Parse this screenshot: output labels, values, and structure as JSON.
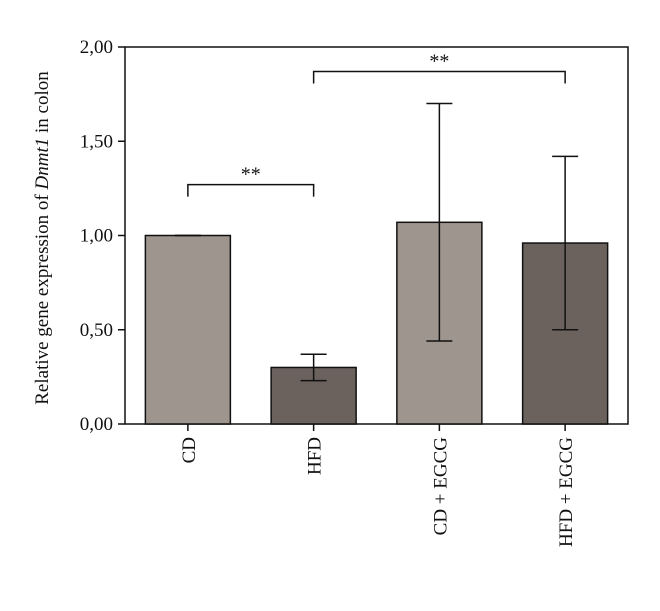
{
  "chart_data": {
    "type": "bar",
    "title": "",
    "xlabel": "",
    "ylabel": {
      "prefix": "Relative gene expression of ",
      "gene": "Dnmt1",
      "suffix": " in colon"
    },
    "categories": [
      "CD",
      "HFD",
      "CD + EGCG",
      "HFD + EGCG"
    ],
    "values": [
      1.0,
      0.3,
      1.07,
      0.96
    ],
    "error_upper": [
      1.0,
      0.37,
      1.7,
      1.42
    ],
    "error_lower": [
      1.0,
      0.23,
      0.44,
      0.5
    ],
    "bar_colors": [
      "#9e958f",
      "#6b625d",
      "#9e958f",
      "#6b625d"
    ],
    "ylim": [
      0,
      2.0
    ],
    "yticks": [
      0,
      0.5,
      1.0,
      1.5,
      2.0
    ],
    "ytick_labels": [
      "0,00",
      "0,50",
      "1,00",
      "1,50",
      "2,00"
    ],
    "grid": false,
    "significance": [
      {
        "from": 0,
        "to": 1,
        "label": "**",
        "y": 1.27
      },
      {
        "from": 1,
        "to": 3,
        "label": "**",
        "y": 1.87
      }
    ]
  }
}
